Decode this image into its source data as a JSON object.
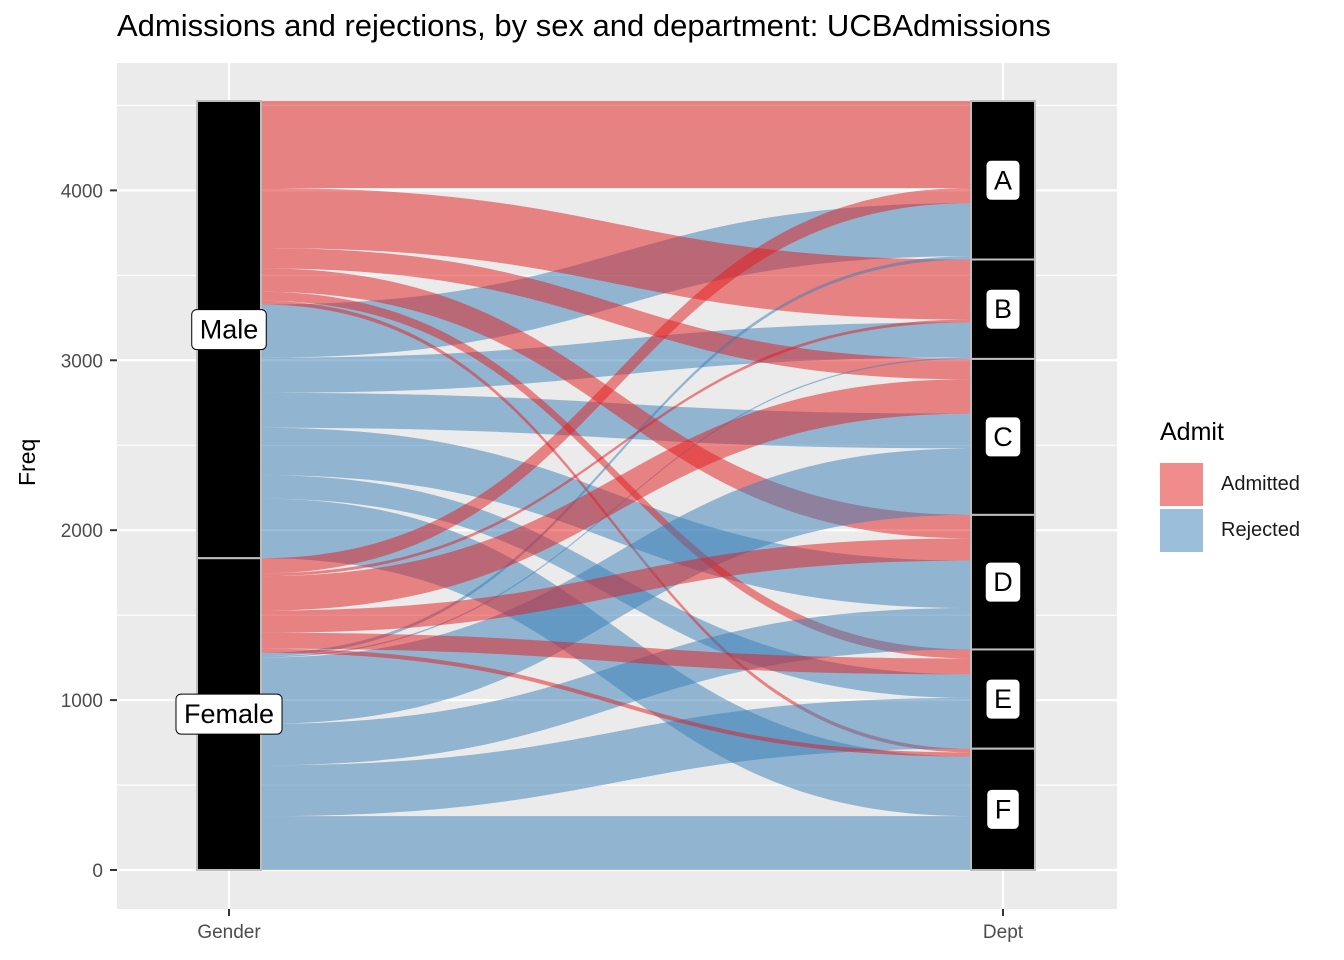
{
  "chart_data": {
    "type": "alluvial",
    "title": "Admissions and rejections, by sex and department: UCBAdmissions",
    "xlabel": "",
    "ylabel": "Freq",
    "axes": [
      "Gender",
      "Dept"
    ],
    "ylim": [
      0,
      4526
    ],
    "y_ticks": [
      0,
      1000,
      2000,
      3000,
      4000
    ],
    "grid": true,
    "legend": {
      "title": "Admit",
      "position": "right",
      "entries": [
        {
          "name": "Admitted",
          "color": "#E41A1C"
        },
        {
          "name": "Rejected",
          "color": "#377EB8"
        }
      ]
    },
    "colors": {
      "Admitted": "#E41A1C",
      "Rejected": "#377EB8"
    },
    "gender_strata": [
      "Male",
      "Female"
    ],
    "dept_strata": [
      "A",
      "B",
      "C",
      "D",
      "E",
      "F"
    ],
    "flows": [
      {
        "gender": "Male",
        "dept": "A",
        "admit": "Admitted",
        "freq": 512
      },
      {
        "gender": "Male",
        "dept": "A",
        "admit": "Rejected",
        "freq": 313
      },
      {
        "gender": "Male",
        "dept": "B",
        "admit": "Admitted",
        "freq": 353
      },
      {
        "gender": "Male",
        "dept": "B",
        "admit": "Rejected",
        "freq": 207
      },
      {
        "gender": "Male",
        "dept": "C",
        "admit": "Admitted",
        "freq": 120
      },
      {
        "gender": "Male",
        "dept": "C",
        "admit": "Rejected",
        "freq": 205
      },
      {
        "gender": "Male",
        "dept": "D",
        "admit": "Admitted",
        "freq": 138
      },
      {
        "gender": "Male",
        "dept": "D",
        "admit": "Rejected",
        "freq": 279
      },
      {
        "gender": "Male",
        "dept": "E",
        "admit": "Admitted",
        "freq": 53
      },
      {
        "gender": "Male",
        "dept": "E",
        "admit": "Rejected",
        "freq": 138
      },
      {
        "gender": "Male",
        "dept": "F",
        "admit": "Admitted",
        "freq": 22
      },
      {
        "gender": "Male",
        "dept": "F",
        "admit": "Rejected",
        "freq": 351
      },
      {
        "gender": "Female",
        "dept": "A",
        "admit": "Admitted",
        "freq": 89
      },
      {
        "gender": "Female",
        "dept": "A",
        "admit": "Rejected",
        "freq": 19
      },
      {
        "gender": "Female",
        "dept": "B",
        "admit": "Admitted",
        "freq": 17
      },
      {
        "gender": "Female",
        "dept": "B",
        "admit": "Rejected",
        "freq": 8
      },
      {
        "gender": "Female",
        "dept": "C",
        "admit": "Admitted",
        "freq": 202
      },
      {
        "gender": "Female",
        "dept": "C",
        "admit": "Rejected",
        "freq": 391
      },
      {
        "gender": "Female",
        "dept": "D",
        "admit": "Admitted",
        "freq": 131
      },
      {
        "gender": "Female",
        "dept": "D",
        "admit": "Rejected",
        "freq": 244
      },
      {
        "gender": "Female",
        "dept": "E",
        "admit": "Admitted",
        "freq": 94
      },
      {
        "gender": "Female",
        "dept": "E",
        "admit": "Rejected",
        "freq": 299
      },
      {
        "gender": "Female",
        "dept": "F",
        "admit": "Admitted",
        "freq": 24
      },
      {
        "gender": "Female",
        "dept": "F",
        "admit": "Rejected",
        "freq": 317
      }
    ]
  }
}
